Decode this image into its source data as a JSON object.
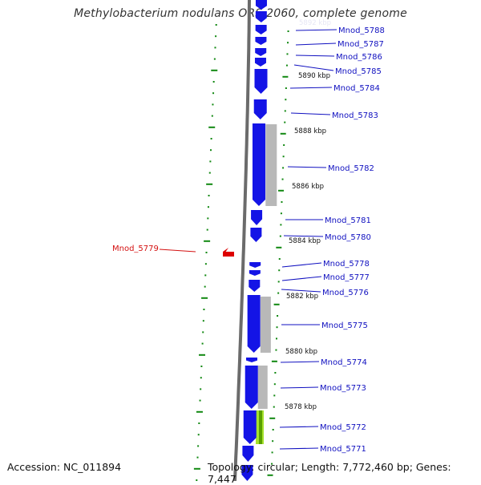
{
  "title": "Methylobacterium nodulans ORS 2060, complete genome",
  "footer": {
    "accession": "Accession: NC_011894",
    "topology": "Topology: circular; Length: 7,772,460 bp; Genes: 7,447"
  },
  "colors": {
    "gene_fwd": "#1414e6",
    "gene_rev": "#dd0000",
    "gene_region": "#b8b8b8",
    "highlight": "#a6e22e",
    "backbone": "#6b6b6b",
    "ruler": "#118811",
    "label": "#1010c0",
    "label_rev": "#d41111"
  },
  "position_labels": [
    "5890 kbp",
    "5888 kbp",
    "5886 kbp",
    "5884 kbp",
    "5882 kbp",
    "5880 kbp",
    "5878 kbp"
  ],
  "genes": [
    {
      "label": "Mnod_5788",
      "strand": "+"
    },
    {
      "label": "Mnod_5787",
      "strand": "+"
    },
    {
      "label": "Mnod_5786",
      "strand": "+"
    },
    {
      "label": "Mnod_5785",
      "strand": "+"
    },
    {
      "label": "Mnod_5784",
      "strand": "+"
    },
    {
      "label": "Mnod_5783",
      "strand": "+"
    },
    {
      "label": "Mnod_5782",
      "strand": "+"
    },
    {
      "label": "Mnod_5781",
      "strand": "+"
    },
    {
      "label": "Mnod_5780",
      "strand": "+"
    },
    {
      "label": "Mnod_5779",
      "strand": "-"
    },
    {
      "label": "Mnod_5778",
      "strand": "+"
    },
    {
      "label": "Mnod_5777",
      "strand": "+"
    },
    {
      "label": "Mnod_5776",
      "strand": "+"
    },
    {
      "label": "Mnod_5775",
      "strand": "+"
    },
    {
      "label": "Mnod_5774",
      "strand": "+"
    },
    {
      "label": "Mnod_5773",
      "strand": "+"
    },
    {
      "label": "Mnod_5772",
      "strand": "+"
    },
    {
      "label": "Mnod_5771",
      "strand": "+"
    }
  ]
}
